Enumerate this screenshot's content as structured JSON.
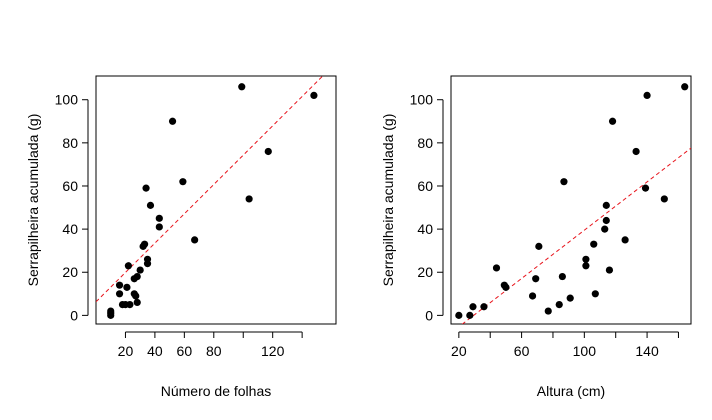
{
  "chart_data": [
    {
      "type": "scatter",
      "xlabel": "Número de folhas",
      "ylabel": "Serrapilheira acumulada (g)",
      "xlim": [
        0,
        163
      ],
      "ylim": [
        -4,
        111
      ],
      "xticks": [
        20,
        40,
        60,
        80,
        120
      ],
      "xtick_labels": [
        "20",
        "40",
        "60",
        "80",
        "120"
      ],
      "xticks_unlabeled": [
        100,
        140
      ],
      "yticks": [
        0,
        20,
        40,
        60,
        80,
        100
      ],
      "ytick_labels": [
        "0",
        "20",
        "40",
        "60",
        "80",
        "100"
      ],
      "fit_line": {
        "intercept": 6.3,
        "slope": 0.68,
        "color": "#e8141c",
        "style": "dashed"
      },
      "points": [
        [
          10,
          0
        ],
        [
          10,
          1
        ],
        [
          10,
          2
        ],
        [
          16,
          14
        ],
        [
          16,
          10
        ],
        [
          18,
          5
        ],
        [
          20,
          5
        ],
        [
          22,
          23
        ],
        [
          21,
          13
        ],
        [
          23,
          5
        ],
        [
          26,
          10
        ],
        [
          26,
          17
        ],
        [
          27,
          9
        ],
        [
          28,
          18
        ],
        [
          28,
          6
        ],
        [
          30,
          21
        ],
        [
          32,
          32
        ],
        [
          33,
          33
        ],
        [
          34,
          59
        ],
        [
          35,
          26
        ],
        [
          35,
          24
        ],
        [
          37,
          51
        ],
        [
          43,
          45
        ],
        [
          43,
          41
        ],
        [
          52,
          90
        ],
        [
          59,
          62
        ],
        [
          67,
          35
        ],
        [
          99,
          106
        ],
        [
          104,
          54
        ],
        [
          117,
          76
        ],
        [
          148,
          102
        ]
      ]
    },
    {
      "type": "scatter",
      "xlabel": "Altura (cm)",
      "ylabel": "Serrapilheira acumulada (g)",
      "xlim": [
        15,
        168
      ],
      "ylim": [
        -4,
        111
      ],
      "xticks": [
        20,
        60,
        100,
        140
      ],
      "xtick_labels": [
        "20",
        "60",
        "100",
        "140"
      ],
      "xticks_unlabeled": [
        40,
        80,
        120,
        160
      ],
      "yticks": [
        0,
        20,
        40,
        60,
        80,
        100
      ],
      "ytick_labels": [
        "0",
        "20",
        "40",
        "60",
        "80",
        "100"
      ],
      "fit_line": {
        "intercept": -16.5,
        "slope": 0.56,
        "color": "#e8141c",
        "style": "dashed"
      },
      "points": [
        [
          20,
          0
        ],
        [
          27,
          0
        ],
        [
          29,
          4
        ],
        [
          36,
          4
        ],
        [
          44,
          22
        ],
        [
          49,
          14
        ],
        [
          50,
          13
        ],
        [
          67,
          9
        ],
        [
          69,
          17
        ],
        [
          71,
          32
        ],
        [
          77,
          2
        ],
        [
          84,
          5
        ],
        [
          86,
          18
        ],
        [
          87,
          62
        ],
        [
          91,
          8
        ],
        [
          101,
          26
        ],
        [
          101,
          23
        ],
        [
          106,
          33
        ],
        [
          107,
          10
        ],
        [
          113,
          40
        ],
        [
          114,
          51
        ],
        [
          114,
          44
        ],
        [
          116,
          21
        ],
        [
          118,
          90
        ],
        [
          126,
          35
        ],
        [
          133,
          76
        ],
        [
          139,
          59
        ],
        [
          140,
          102
        ],
        [
          151,
          54
        ],
        [
          164,
          106
        ]
      ]
    }
  ]
}
